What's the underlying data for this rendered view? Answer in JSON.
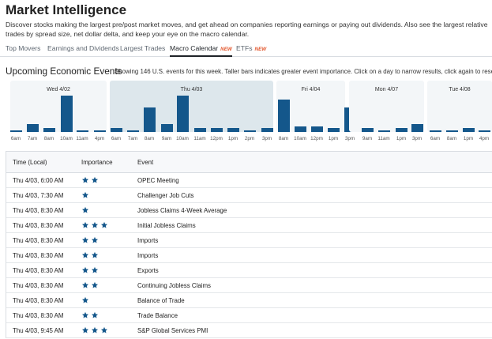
{
  "page": {
    "title": "Market Intelligence",
    "intro": "Discover stocks making the largest pre/post market moves, and get ahead on companies reporting earnings or paying out dividends. Also see the largest relative trades by spread size, net dollar delta, and keep your eye on the macro calendar."
  },
  "tabs": [
    {
      "label": "Top Movers",
      "badge": "",
      "active": false
    },
    {
      "label": "Earnings and Dividends",
      "badge": "",
      "active": false
    },
    {
      "label": "Largest Trades",
      "badge": "",
      "active": false
    },
    {
      "label": "Macro Calendar",
      "badge": "NEW",
      "active": true
    },
    {
      "label": "ETFs",
      "badge": "NEW",
      "active": false
    }
  ],
  "section": {
    "title": "Upcoming Economic Events",
    "description": "Showing 146 U.S. events for this week. Taller bars indicates greater event importance. Click on a day to narrow results, click again to reset."
  },
  "chart_data": {
    "type": "bar",
    "days": [
      {
        "label": "Wed 4/02",
        "selected": false,
        "ticks": [
          "6am",
          "7am",
          "8am",
          "10am",
          "11am",
          "4pm"
        ],
        "values": [
          1,
          4,
          2,
          19,
          1,
          1
        ]
      },
      {
        "label": "Thu 4/03",
        "selected": true,
        "ticks": [
          "6am",
          "7am",
          "8am",
          "9am",
          "10am",
          "11am",
          "12pm",
          "1pm",
          "2pm",
          "3pm"
        ],
        "values": [
          2,
          1,
          13,
          4,
          19,
          2,
          2,
          2,
          1,
          2
        ]
      },
      {
        "label": "Fri 4/04",
        "selected": false,
        "ticks": [
          "8am",
          "10am",
          "12pm",
          "1pm",
          "3pm"
        ],
        "values": [
          17,
          3,
          3,
          2,
          13
        ]
      },
      {
        "label": "Mon 4/07",
        "selected": false,
        "ticks": [
          "9am",
          "11am",
          "1pm",
          "3pm"
        ],
        "values": [
          2,
          1,
          2,
          4
        ]
      },
      {
        "label": "Tue 4/08",
        "selected": false,
        "ticks": [
          "6am",
          "8am",
          "1pm",
          "4pm"
        ],
        "values": [
          1,
          1,
          2,
          1
        ]
      }
    ]
  },
  "table": {
    "headers": {
      "time": "Time (Local)",
      "importance": "Importance",
      "event": "Event"
    },
    "rows": [
      {
        "time": "Thu 4/03, 6:00 AM",
        "importance": 2,
        "event": "OPEC Meeting"
      },
      {
        "time": "Thu 4/03, 7:30 AM",
        "importance": 1,
        "event": "Challenger Job Cuts"
      },
      {
        "time": "Thu 4/03, 8:30 AM",
        "importance": 1,
        "event": "Jobless Claims 4-Week Average"
      },
      {
        "time": "Thu 4/03, 8:30 AM",
        "importance": 3,
        "event": "Initial Jobless Claims"
      },
      {
        "time": "Thu 4/03, 8:30 AM",
        "importance": 2,
        "event": "Imports"
      },
      {
        "time": "Thu 4/03, 8:30 AM",
        "importance": 2,
        "event": "Imports"
      },
      {
        "time": "Thu 4/03, 8:30 AM",
        "importance": 2,
        "event": "Exports"
      },
      {
        "time": "Thu 4/03, 8:30 AM",
        "importance": 2,
        "event": "Continuing Jobless Claims"
      },
      {
        "time": "Thu 4/03, 8:30 AM",
        "importance": 1,
        "event": "Balance of Trade"
      },
      {
        "time": "Thu 4/03, 8:30 AM",
        "importance": 2,
        "event": "Trade Balance"
      },
      {
        "time": "Thu 4/03, 9:45 AM",
        "importance": 3,
        "event": "S&P Global Services PMI"
      }
    ]
  },
  "icons": {
    "star": "star-icon"
  },
  "colors": {
    "accent": "#14578b",
    "badge": "#e2562c",
    "panel": "#f3f6f8",
    "panel_selected": "#dde7ec"
  }
}
